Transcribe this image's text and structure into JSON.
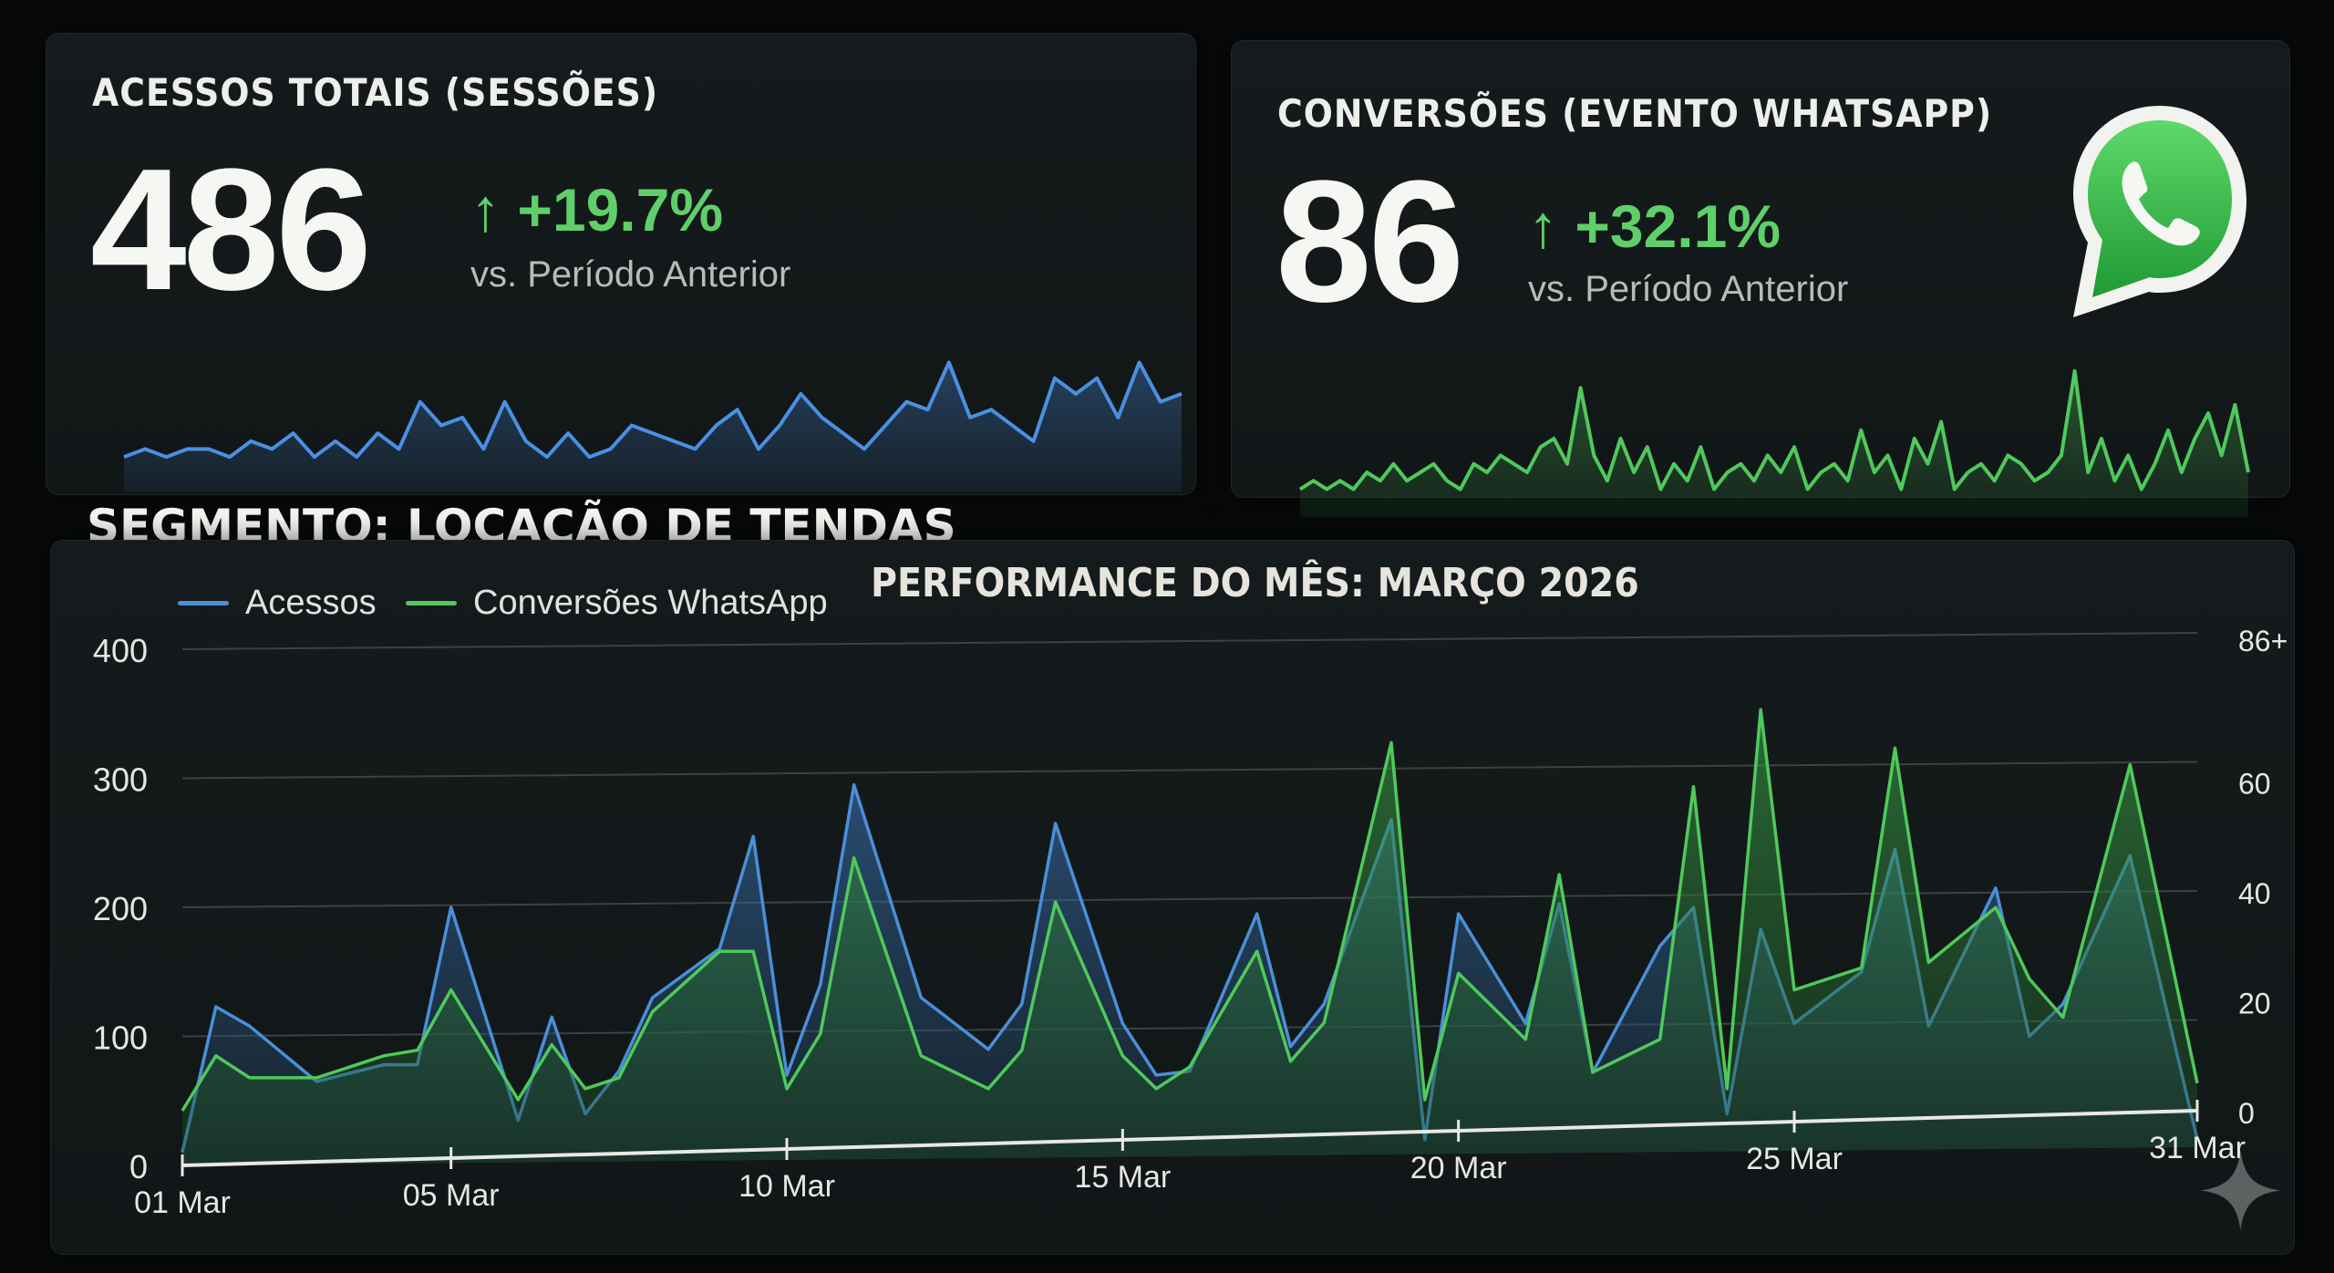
{
  "kpis": {
    "acessos": {
      "title": "ACESSOS TOTAIS (SESSÕES)",
      "value": "486",
      "delta": "↑ +19.7%",
      "comparison": "vs. Período Anterior",
      "spark_color": "#4a90e2",
      "sparkline": [
        3,
        4,
        3,
        4,
        4,
        3,
        5,
        4,
        6,
        3,
        5,
        3,
        6,
        4,
        10,
        7,
        8,
        4,
        10,
        5,
        3,
        6,
        3,
        4,
        7,
        6,
        5,
        4,
        7,
        9,
        4,
        7,
        11,
        8,
        6,
        4,
        7,
        10,
        9,
        15,
        8,
        9,
        7,
        5,
        13,
        11,
        13,
        8,
        15,
        10,
        11
      ]
    },
    "conversoes": {
      "title": "CONVERSÕES (EVENTO WHATSAPP)",
      "value": "86",
      "delta": "↑ +32.1%",
      "comparison": "vs. Período Anterior",
      "spark_color": "#4fc95b",
      "icon": "whatsapp-icon",
      "sparkline": [
        2,
        3,
        2,
        3,
        2,
        4,
        3,
        5,
        3,
        4,
        5,
        3,
        2,
        5,
        4,
        6,
        5,
        4,
        7,
        8,
        5,
        14,
        6,
        3,
        8,
        4,
        7,
        2,
        5,
        3,
        7,
        2,
        4,
        5,
        3,
        6,
        4,
        7,
        2,
        4,
        5,
        3,
        9,
        4,
        6,
        2,
        8,
        5,
        10,
        2,
        4,
        5,
        3,
        6,
        5,
        3,
        4,
        6,
        16,
        4,
        8,
        3,
        6,
        2,
        5,
        9,
        4,
        8,
        11,
        6,
        12,
        4
      ]
    }
  },
  "segment_title": "SEGMENTO: LOCAÇÃO DE TENDAS",
  "chart_data": {
    "type": "area",
    "title": "PERFORMANCE DO MÊS: MARÇO 2026",
    "x_ticks": [
      "01 Mar",
      "05 Mar",
      "10 Mar",
      "15 Mar",
      "20 Mar",
      "25 Mar",
      "31 Mar"
    ],
    "y_left": {
      "ticks": [
        "0",
        "100",
        "200",
        "300",
        "400"
      ],
      "range": [
        0,
        400
      ]
    },
    "y_right": {
      "ticks": [
        "0",
        "20",
        "40",
        "60",
        "86+"
      ],
      "range": [
        0,
        86
      ]
    },
    "grid": true,
    "legend_position": "top-left",
    "series": [
      {
        "name": "Acessos",
        "axis": "left",
        "color": "#4a8fd8",
        "x": [
          "01 Mar",
          "01 Mar",
          "02 Mar",
          "03 Mar",
          "04 Mar",
          "04 Mar",
          "05 Mar",
          "06 Mar",
          "06 Mar",
          "07 Mar",
          "07 Mar",
          "08 Mar",
          "09 Mar",
          "09 Mar",
          "10 Mar",
          "10 Mar",
          "11 Mar",
          "12 Mar",
          "13 Mar",
          "13 Mar",
          "14 Mar",
          "15 Mar",
          "15 Mar",
          "16 Mar",
          "17 Mar",
          "17 Mar",
          "18 Mar",
          "19 Mar",
          "19 Mar",
          "20 Mar",
          "21 Mar",
          "21 Mar",
          "22 Mar",
          "23 Mar",
          "23 Mar",
          "24 Mar",
          "24 Mar",
          "25 Mar",
          "26 Mar",
          "26 Mar",
          "27 Mar",
          "28 Mar",
          "28 Mar",
          "29 Mar",
          "30 Mar",
          "31 Mar"
        ],
        "values": [
          10,
          123,
          108,
          65,
          78,
          78,
          200,
          35,
          115,
          40,
          73,
          130,
          168,
          255,
          70,
          140,
          295,
          130,
          90,
          125,
          265,
          110,
          70,
          73,
          195,
          92,
          125,
          268,
          20,
          195,
          110,
          203,
          72,
          170,
          200,
          40,
          183,
          110,
          150,
          245,
          108,
          215,
          100,
          125,
          240,
          20
        ]
      },
      {
        "name": "Conversões WhatsApp",
        "axis": "right",
        "color": "#4fc95b",
        "x": [
          "01 Mar",
          "01 Mar",
          "02 Mar",
          "03 Mar",
          "04 Mar",
          "04 Mar",
          "05 Mar",
          "06 Mar",
          "06 Mar",
          "07 Mar",
          "07 Mar",
          "08 Mar",
          "09 Mar",
          "09 Mar",
          "10 Mar",
          "10 Mar",
          "11 Mar",
          "12 Mar",
          "13 Mar",
          "13 Mar",
          "14 Mar",
          "15 Mar",
          "15 Mar",
          "16 Mar",
          "17 Mar",
          "17 Mar",
          "18 Mar",
          "19 Mar",
          "19 Mar",
          "20 Mar",
          "21 Mar",
          "21 Mar",
          "22 Mar",
          "23 Mar",
          "23 Mar",
          "24 Mar",
          "24 Mar",
          "25 Mar",
          "26 Mar",
          "26 Mar",
          "27 Mar",
          "28 Mar",
          "28 Mar",
          "29 Mar",
          "30 Mar",
          "31 Mar"
        ],
        "values": [
          0,
          10,
          6,
          6,
          10,
          11,
          22,
          2,
          12,
          4,
          6,
          18,
          29,
          29,
          4,
          14,
          46,
          10,
          4,
          11,
          38,
          10,
          4,
          8,
          29,
          9,
          16,
          67,
          2,
          25,
          13,
          43,
          7,
          13,
          59,
          4,
          73,
          22,
          26,
          66,
          27,
          37,
          24,
          17,
          63,
          5
        ]
      }
    ]
  }
}
